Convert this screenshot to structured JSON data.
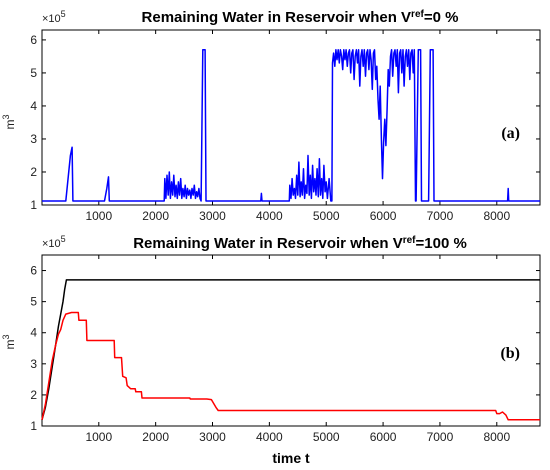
{
  "chart_data": [
    {
      "type": "line",
      "title_main": "Remaining Water in Reservoir when V",
      "title_sup": "ref",
      "title_end": "=0 %",
      "panel_label": "(a)",
      "ylabel": "m",
      "ylabel_sup": "3",
      "exponent_label": "×10",
      "exponent_sup": "5",
      "xlabel": "",
      "xlim": [
        1,
        8760
      ],
      "ylim": [
        1,
        6.3
      ],
      "xticks": [
        1000,
        2000,
        3000,
        4000,
        5000,
        6000,
        7000,
        8000
      ],
      "yticks": [
        1,
        2,
        3,
        4,
        5,
        6
      ],
      "grid": false,
      "series": [
        {
          "color": "#0000ff",
          "points": [
            [
              1,
              1.12
            ],
            [
              420,
              1.12
            ],
            [
              500,
              2.5
            ],
            [
              530,
              2.75
            ],
            [
              545,
              1.12
            ],
            [
              1100,
              1.12
            ],
            [
              1140,
              1.5
            ],
            [
              1170,
              1.85
            ],
            [
              1185,
              1.12
            ],
            [
              2150,
              1.12
            ],
            [
              2160,
              1.8
            ],
            [
              2180,
              1.2
            ],
            [
              2200,
              1.9
            ],
            [
              2220,
              1.3
            ],
            [
              2240,
              2.0
            ],
            [
              2260,
              1.2
            ],
            [
              2280,
              1.7
            ],
            [
              2300,
              1.3
            ],
            [
              2320,
              1.9
            ],
            [
              2340,
              1.25
            ],
            [
              2360,
              1.6
            ],
            [
              2380,
              1.2
            ],
            [
              2400,
              1.7
            ],
            [
              2420,
              1.3
            ],
            [
              2440,
              1.8
            ],
            [
              2460,
              1.2
            ],
            [
              2480,
              1.5
            ],
            [
              2500,
              1.25
            ],
            [
              2520,
              1.6
            ],
            [
              2540,
              1.2
            ],
            [
              2560,
              1.5
            ],
            [
              2580,
              1.3
            ],
            [
              2600,
              1.45
            ],
            [
              2620,
              1.2
            ],
            [
              2640,
              1.5
            ],
            [
              2660,
              1.3
            ],
            [
              2680,
              1.6
            ],
            [
              2700,
              1.2
            ],
            [
              2720,
              1.4
            ],
            [
              2740,
              1.25
            ],
            [
              2760,
              1.5
            ],
            [
              2780,
              1.2
            ],
            [
              2800,
              1.12
            ],
            [
              2830,
              5.7
            ],
            [
              2870,
              5.7
            ],
            [
              2885,
              1.12
            ],
            [
              3850,
              1.12
            ],
            [
              3860,
              1.35
            ],
            [
              3870,
              1.12
            ],
            [
              4350,
              1.12
            ],
            [
              4360,
              1.6
            ],
            [
              4380,
              1.2
            ],
            [
              4400,
              1.8
            ],
            [
              4420,
              1.3
            ],
            [
              4440,
              1.5
            ],
            [
              4460,
              1.2
            ],
            [
              4480,
              1.9
            ],
            [
              4500,
              1.3
            ],
            [
              4520,
              2.3
            ],
            [
              4540,
              1.25
            ],
            [
              4560,
              1.7
            ],
            [
              4580,
              1.3
            ],
            [
              4600,
              2.1
            ],
            [
              4620,
              1.2
            ],
            [
              4640,
              1.6
            ],
            [
              4660,
              1.35
            ],
            [
              4680,
              2.5
            ],
            [
              4700,
              1.3
            ],
            [
              4720,
              1.9
            ],
            [
              4740,
              1.2
            ],
            [
              4760,
              2.2
            ],
            [
              4780,
              1.4
            ],
            [
              4800,
              1.8
            ],
            [
              4820,
              1.3
            ],
            [
              4840,
              2.1
            ],
            [
              4860,
              1.25
            ],
            [
              4880,
              2.4
            ],
            [
              4900,
              1.3
            ],
            [
              4920,
              1.8
            ],
            [
              4940,
              1.2
            ],
            [
              4960,
              2.2
            ],
            [
              4980,
              1.4
            ],
            [
              5000,
              1.7
            ],
            [
              5020,
              1.2
            ],
            [
              5050,
              1.8
            ],
            [
              5080,
              1.12
            ],
            [
              5100,
              1.12
            ],
            [
              5110,
              5.3
            ],
            [
              5130,
              5.6
            ],
            [
              5150,
              5.2
            ],
            [
              5170,
              5.7
            ],
            [
              5190,
              5.4
            ],
            [
              5210,
              5.7
            ],
            [
              5230,
              5.3
            ],
            [
              5250,
              5.7
            ],
            [
              5270,
              5.5
            ],
            [
              5290,
              5.1
            ],
            [
              5310,
              5.7
            ],
            [
              5330,
              5.4
            ],
            [
              5350,
              5.7
            ],
            [
              5370,
              5.2
            ],
            [
              5390,
              5.6
            ],
            [
              5410,
              5.7
            ],
            [
              5430,
              5.0
            ],
            [
              5450,
              5.6
            ],
            [
              5470,
              5.7
            ],
            [
              5490,
              4.8
            ],
            [
              5510,
              5.5
            ],
            [
              5530,
              5.7
            ],
            [
              5550,
              5.3
            ],
            [
              5570,
              5.7
            ],
            [
              5590,
              4.6
            ],
            [
              5610,
              5.5
            ],
            [
              5630,
              5.7
            ],
            [
              5650,
              5.2
            ],
            [
              5670,
              5.7
            ],
            [
              5690,
              4.9
            ],
            [
              5710,
              5.6
            ],
            [
              5730,
              5.7
            ],
            [
              5750,
              5.1
            ],
            [
              5770,
              5.7
            ],
            [
              5790,
              5.4
            ],
            [
              5810,
              4.5
            ],
            [
              5830,
              5.6
            ],
            [
              5850,
              5.7
            ],
            [
              5870,
              4.8
            ],
            [
              5890,
              5.2
            ],
            [
              5910,
              4.2
            ],
            [
              5930,
              3.6
            ],
            [
              5950,
              4.6
            ],
            [
              5970,
              3.0
            ],
            [
              5990,
              1.8
            ],
            [
              6010,
              2.9
            ],
            [
              6030,
              3.6
            ],
            [
              6050,
              2.8
            ],
            [
              6070,
              3.9
            ],
            [
              6090,
              5.1
            ],
            [
              6110,
              4.6
            ],
            [
              6130,
              5.5
            ],
            [
              6150,
              5.7
            ],
            [
              6170,
              4.9
            ],
            [
              6190,
              5.6
            ],
            [
              6210,
              5.7
            ],
            [
              6230,
              5.2
            ],
            [
              6250,
              5.7
            ],
            [
              6270,
              4.4
            ],
            [
              6290,
              5.6
            ],
            [
              6310,
              5.7
            ],
            [
              6330,
              5.0
            ],
            [
              6350,
              5.7
            ],
            [
              6370,
              4.6
            ],
            [
              6390,
              5.5
            ],
            [
              6410,
              5.7
            ],
            [
              6430,
              5.2
            ],
            [
              6450,
              5.7
            ],
            [
              6470,
              4.8
            ],
            [
              6490,
              5.6
            ],
            [
              6510,
              5.7
            ],
            [
              6530,
              5.0
            ],
            [
              6550,
              5.7
            ],
            [
              6570,
              1.12
            ],
            [
              6580,
              1.12
            ],
            [
              6620,
              5.7
            ],
            [
              6660,
              5.7
            ],
            [
              6675,
              1.12
            ],
            [
              6800,
              1.12
            ],
            [
              6830,
              5.7
            ],
            [
              6880,
              5.7
            ],
            [
              6895,
              1.12
            ],
            [
              8190,
              1.12
            ],
            [
              8200,
              1.5
            ],
            [
              8210,
              1.12
            ],
            [
              8760,
              1.12
            ]
          ]
        }
      ]
    },
    {
      "type": "line",
      "title_main": "Remaining Water in Reservoir when V",
      "title_sup": "ref",
      "title_end": "=100 %",
      "panel_label": "(b)",
      "ylabel": "m",
      "ylabel_sup": "3",
      "exponent_label": "×10",
      "exponent_sup": "5",
      "xlabel": "time t",
      "xlim": [
        1,
        8760
      ],
      "ylim": [
        1,
        6.5
      ],
      "xticks": [
        1000,
        2000,
        3000,
        4000,
        5000,
        6000,
        7000,
        8000
      ],
      "yticks": [
        1,
        2,
        3,
        4,
        5,
        6
      ],
      "grid": false,
      "series": [
        {
          "color": "#000000",
          "points": [
            [
              1,
              1.2
            ],
            [
              60,
              1.6
            ],
            [
              120,
              2.2
            ],
            [
              180,
              2.9
            ],
            [
              240,
              3.6
            ],
            [
              290,
              4.2
            ],
            [
              330,
              4.6
            ],
            [
              370,
              5.0
            ],
            [
              400,
              5.4
            ],
            [
              430,
              5.7
            ],
            [
              500,
              5.7
            ],
            [
              8760,
              5.7
            ]
          ]
        },
        {
          "color": "#ff0000",
          "points": [
            [
              1,
              1.2
            ],
            [
              60,
              1.7
            ],
            [
              120,
              2.4
            ],
            [
              180,
              3.1
            ],
            [
              240,
              3.6
            ],
            [
              290,
              3.95
            ],
            [
              330,
              4.1
            ],
            [
              370,
              4.4
            ],
            [
              420,
              4.6
            ],
            [
              520,
              4.65
            ],
            [
              640,
              4.65
            ],
            [
              650,
              4.4
            ],
            [
              780,
              4.4
            ],
            [
              790,
              3.75
            ],
            [
              1270,
              3.75
            ],
            [
              1280,
              3.2
            ],
            [
              1400,
              3.2
            ],
            [
              1420,
              2.6
            ],
            [
              1480,
              2.55
            ],
            [
              1500,
              2.3
            ],
            [
              1560,
              2.2
            ],
            [
              1640,
              2.2
            ],
            [
              1650,
              2.1
            ],
            [
              1750,
              2.1
            ],
            [
              1760,
              1.9
            ],
            [
              2600,
              1.9
            ],
            [
              2610,
              1.87
            ],
            [
              2900,
              1.87
            ],
            [
              2980,
              1.85
            ],
            [
              3060,
              1.6
            ],
            [
              3100,
              1.5
            ],
            [
              7980,
              1.5
            ],
            [
              8000,
              1.4
            ],
            [
              8050,
              1.4
            ],
            [
              8100,
              1.45
            ],
            [
              8160,
              1.35
            ],
            [
              8200,
              1.2
            ],
            [
              8760,
              1.2
            ]
          ]
        }
      ]
    }
  ]
}
